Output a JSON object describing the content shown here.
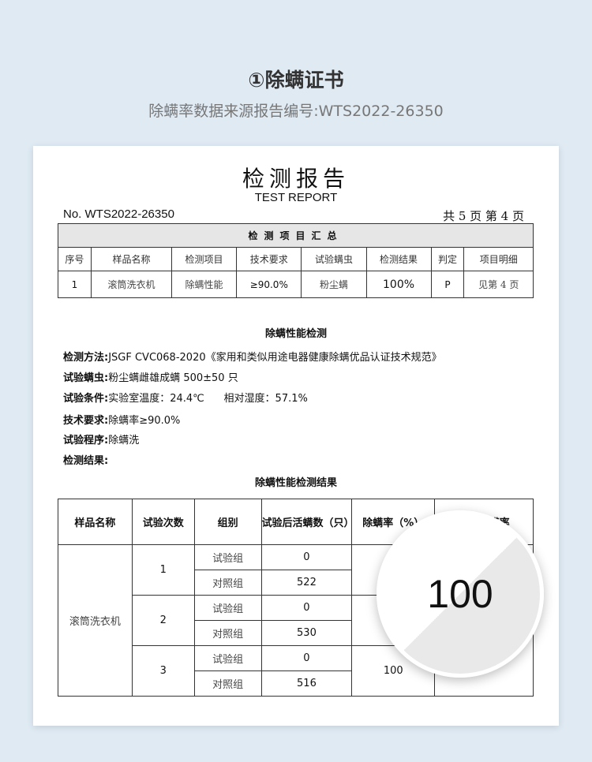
{
  "header": {
    "title": "①除螨证书",
    "subtitle": "除螨率数据来源报告编号:WTS2022-26350"
  },
  "report": {
    "title": "检测报告",
    "title_en": "TEST REPORT",
    "number": "No. WTS2022-26350",
    "page": "共 5 页 第 4 页",
    "summary": {
      "caption": "检测项目汇总",
      "headers": [
        "序号",
        "样品名称",
        "检测项目",
        "技术要求",
        "试验螨虫",
        "检测结果",
        "判定",
        "项目明细"
      ],
      "row": [
        "1",
        "滚筒洗衣机",
        "除螨性能",
        "≥90.0%",
        "粉尘螨",
        "100%",
        "P",
        "见第 4 页"
      ]
    },
    "section_title": "除螨性能检测",
    "details": [
      {
        "label": "检测方法:",
        "value": "JSGF CVC068-2020《家用和类似用途电器健康除螨优品认证技术规范》"
      },
      {
        "label": "试验螨虫:",
        "value": "粉尘螨雌雄成螨 500±50 只"
      },
      {
        "label": "试验条件:",
        "value": "实验室温度：24.4℃      相对湿度：57.1%"
      },
      {
        "label": "技术要求:",
        "value": "除螨率≥90.0%"
      },
      {
        "label": "试验程序:",
        "value": "除螨洗"
      },
      {
        "label": "检测结果:",
        "value": ""
      }
    ],
    "results_title": "除螨性能检测结果",
    "results": {
      "headers": [
        "样品名称",
        "试验次数",
        "组别",
        "试验后活螨数（只）",
        "除螨率（%）",
        "平均除螨率"
      ],
      "sample": "滚筒洗衣机",
      "test_group": "试验组",
      "control_group": "对照组",
      "trials": [
        {
          "n": "1",
          "test": "0",
          "control": "522",
          "rate": ""
        },
        {
          "n": "2",
          "test": "0",
          "control": "530",
          "rate": ""
        },
        {
          "n": "3",
          "test": "0",
          "control": "516",
          "rate": "100"
        }
      ],
      "average": "100"
    }
  }
}
